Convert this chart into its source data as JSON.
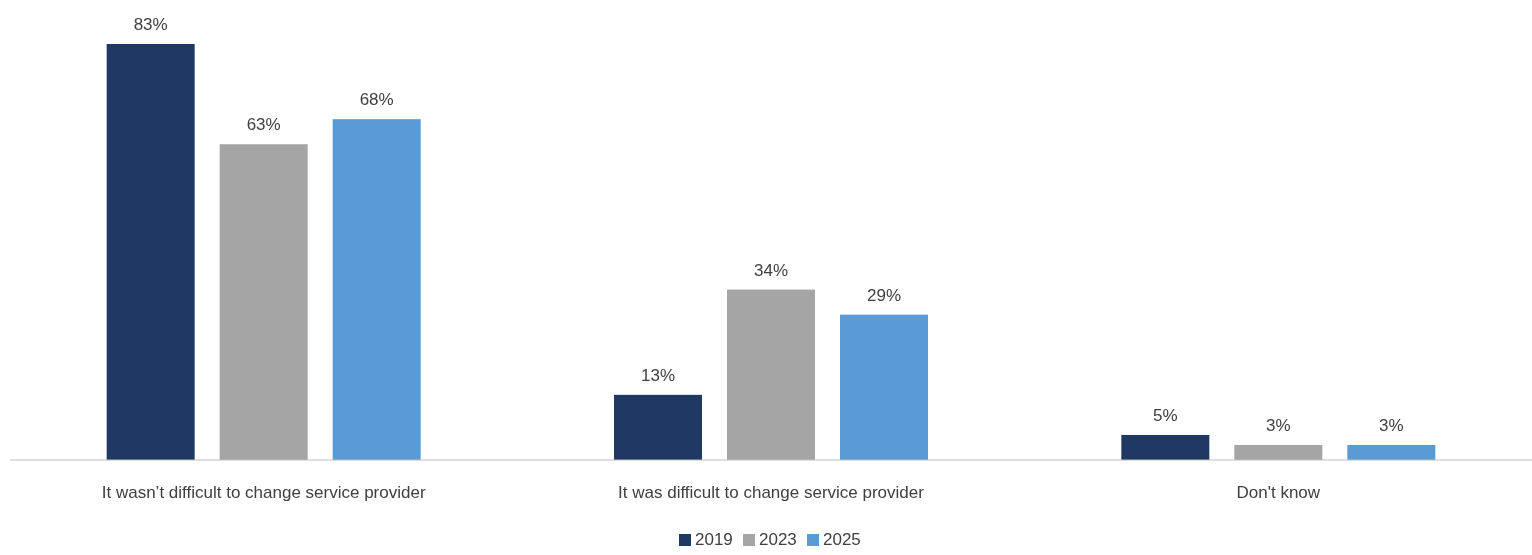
{
  "chart_data": {
    "type": "bar",
    "categories": [
      "It wasn’t difficult to change service provider",
      "It was difficult to change service provider",
      "Don't know"
    ],
    "series": [
      {
        "name": "2019",
        "color": "#203864",
        "values": [
          83,
          13,
          5
        ],
        "value_labels": [
          "83%",
          "13%",
          "5%"
        ]
      },
      {
        "name": "2023",
        "color": "#a5a5a5",
        "values": [
          63,
          34,
          3
        ],
        "value_labels": [
          "63%",
          "34%",
          "3%"
        ]
      },
      {
        "name": "2025",
        "color": "#5b9bd5",
        "values": [
          68,
          29,
          3
        ],
        "value_labels": [
          "68%",
          "29%",
          "3%"
        ]
      }
    ],
    "legend": "bottom"
  }
}
